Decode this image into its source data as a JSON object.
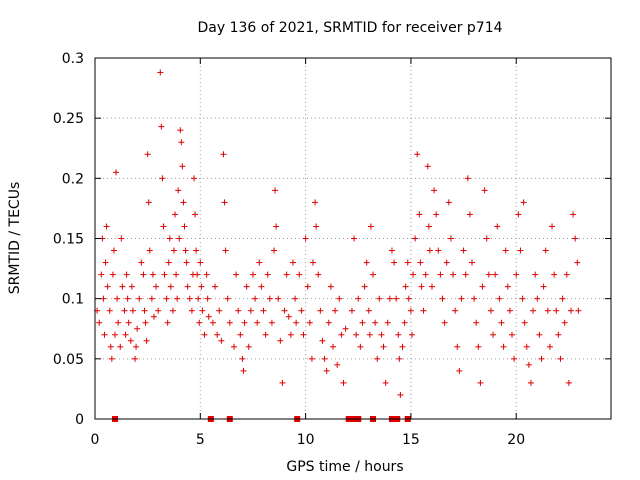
{
  "chart_data": {
    "type": "scatter",
    "title": "Day 136 of 2021, SRMTID for receiver p714",
    "xlabel": "GPS time / hours",
    "ylabel": "SRMTID / TECUs",
    "xlim": [
      0,
      24.5
    ],
    "ylim": [
      0,
      0.3
    ],
    "xticks": [
      0,
      5,
      10,
      15,
      20
    ],
    "xtick_labels": [
      "0",
      "5",
      "10",
      "15",
      "20"
    ],
    "yticks": [
      0,
      0.05,
      0.1,
      0.15,
      0.2,
      0.25,
      0.3
    ],
    "ytick_labels": [
      "0",
      "0.05",
      "0.1",
      "0.15",
      "0.2",
      "0.25",
      "0.3"
    ],
    "grid": true,
    "marker": "+",
    "series_color": "#e00000",
    "data_gap_hours": [
      0.95,
      5.5,
      6.4,
      9.6,
      12.05,
      12.3,
      12.5,
      13.2,
      14.1,
      14.35,
      14.85
    ],
    "series": [
      {
        "name": "SRMTID",
        "points": [
          [
            0.1,
            0.09
          ],
          [
            0.2,
            0.08
          ],
          [
            0.3,
            0.12
          ],
          [
            0.35,
            0.15
          ],
          [
            0.4,
            0.1
          ],
          [
            0.45,
            0.07
          ],
          [
            0.5,
            0.13
          ],
          [
            0.55,
            0.16
          ],
          [
            0.6,
            0.11
          ],
          [
            0.7,
            0.09
          ],
          [
            0.75,
            0.06
          ],
          [
            0.8,
            0.05
          ],
          [
            0.85,
            0.12
          ],
          [
            0.9,
            0.14
          ],
          [
            0.95,
            0.07
          ],
          [
            1.0,
            0.205
          ],
          [
            1.05,
            0.1
          ],
          [
            1.1,
            0.08
          ],
          [
            1.2,
            0.06
          ],
          [
            1.25,
            0.15
          ],
          [
            1.3,
            0.11
          ],
          [
            1.4,
            0.09
          ],
          [
            1.45,
            0.07
          ],
          [
            1.5,
            0.12
          ],
          [
            1.55,
            0.1
          ],
          [
            1.6,
            0.08
          ],
          [
            1.7,
            0.065
          ],
          [
            1.75,
            0.11
          ],
          [
            1.8,
            0.09
          ],
          [
            1.9,
            0.05
          ],
          [
            1.95,
            0.06
          ],
          [
            2.0,
            0.075
          ],
          [
            2.1,
            0.1
          ],
          [
            2.2,
            0.13
          ],
          [
            2.3,
            0.12
          ],
          [
            2.35,
            0.09
          ],
          [
            2.4,
            0.08
          ],
          [
            2.45,
            0.065
          ],
          [
            2.5,
            0.22
          ],
          [
            2.55,
            0.18
          ],
          [
            2.6,
            0.14
          ],
          [
            2.7,
            0.1
          ],
          [
            2.75,
            0.12
          ],
          [
            2.8,
            0.085
          ],
          [
            2.9,
            0.11
          ],
          [
            3.0,
            0.09
          ],
          [
            3.1,
            0.288
          ],
          [
            3.15,
            0.243
          ],
          [
            3.2,
            0.2
          ],
          [
            3.25,
            0.16
          ],
          [
            3.3,
            0.12
          ],
          [
            3.4,
            0.1
          ],
          [
            3.45,
            0.08
          ],
          [
            3.5,
            0.13
          ],
          [
            3.55,
            0.15
          ],
          [
            3.6,
            0.11
          ],
          [
            3.7,
            0.09
          ],
          [
            3.75,
            0.14
          ],
          [
            3.8,
            0.17
          ],
          [
            3.85,
            0.12
          ],
          [
            3.9,
            0.1
          ],
          [
            3.95,
            0.19
          ],
          [
            4.0,
            0.15
          ],
          [
            4.05,
            0.24
          ],
          [
            4.1,
            0.23
          ],
          [
            4.15,
            0.21
          ],
          [
            4.2,
            0.18
          ],
          [
            4.25,
            0.16
          ],
          [
            4.3,
            0.14
          ],
          [
            4.35,
            0.13
          ],
          [
            4.4,
            0.11
          ],
          [
            4.5,
            0.1
          ],
          [
            4.6,
            0.09
          ],
          [
            4.65,
            0.12
          ],
          [
            4.7,
            0.2
          ],
          [
            4.75,
            0.17
          ],
          [
            4.8,
            0.14
          ],
          [
            4.85,
            0.12
          ],
          [
            4.9,
            0.1
          ],
          [
            4.95,
            0.08
          ],
          [
            5.0,
            0.13
          ],
          [
            5.05,
            0.11
          ],
          [
            5.1,
            0.09
          ],
          [
            5.2,
            0.07
          ],
          [
            5.3,
            0.12
          ],
          [
            5.35,
            0.1
          ],
          [
            5.4,
            0.085
          ],
          [
            5.6,
            0.08
          ],
          [
            5.7,
            0.11
          ],
          [
            5.8,
            0.07
          ],
          [
            5.9,
            0.09
          ],
          [
            6.0,
            0.065
          ],
          [
            6.1,
            0.22
          ],
          [
            6.15,
            0.18
          ],
          [
            6.2,
            0.14
          ],
          [
            6.3,
            0.1
          ],
          [
            6.4,
            0.08
          ],
          [
            6.6,
            0.06
          ],
          [
            6.7,
            0.12
          ],
          [
            6.8,
            0.09
          ],
          [
            6.9,
            0.07
          ],
          [
            7.0,
            0.05
          ],
          [
            7.05,
            0.04
          ],
          [
            7.1,
            0.08
          ],
          [
            7.2,
            0.11
          ],
          [
            7.3,
            0.06
          ],
          [
            7.4,
            0.09
          ],
          [
            7.5,
            0.12
          ],
          [
            7.6,
            0.1
          ],
          [
            7.7,
            0.08
          ],
          [
            7.8,
            0.13
          ],
          [
            7.9,
            0.11
          ],
          [
            8.0,
            0.09
          ],
          [
            8.1,
            0.07
          ],
          [
            8.2,
            0.12
          ],
          [
            8.3,
            0.1
          ],
          [
            8.4,
            0.08
          ],
          [
            8.5,
            0.14
          ],
          [
            8.55,
            0.19
          ],
          [
            8.6,
            0.16
          ],
          [
            8.7,
            0.1
          ],
          [
            8.8,
            0.065
          ],
          [
            8.9,
            0.03
          ],
          [
            9.0,
            0.09
          ],
          [
            9.1,
            0.12
          ],
          [
            9.2,
            0.085
          ],
          [
            9.3,
            0.07
          ],
          [
            9.4,
            0.13
          ],
          [
            9.5,
            0.1
          ],
          [
            9.55,
            0.08
          ],
          [
            9.7,
            0.12
          ],
          [
            9.8,
            0.09
          ],
          [
            9.9,
            0.07
          ],
          [
            10.0,
            0.15
          ],
          [
            10.1,
            0.11
          ],
          [
            10.2,
            0.08
          ],
          [
            10.3,
            0.05
          ],
          [
            10.35,
            0.13
          ],
          [
            10.45,
            0.18
          ],
          [
            10.5,
            0.16
          ],
          [
            10.6,
            0.12
          ],
          [
            10.7,
            0.09
          ],
          [
            10.8,
            0.065
          ],
          [
            10.9,
            0.05
          ],
          [
            11.0,
            0.04
          ],
          [
            11.1,
            0.08
          ],
          [
            11.2,
            0.11
          ],
          [
            11.3,
            0.06
          ],
          [
            11.4,
            0.09
          ],
          [
            11.5,
            0.045
          ],
          [
            11.6,
            0.1
          ],
          [
            11.7,
            0.07
          ],
          [
            11.8,
            0.03
          ],
          [
            11.9,
            0.075
          ],
          [
            12.2,
            0.09
          ],
          [
            12.3,
            0.15
          ],
          [
            12.4,
            0.07
          ],
          [
            12.5,
            0.1
          ],
          [
            12.6,
            0.06
          ],
          [
            12.7,
            0.08
          ],
          [
            12.8,
            0.11
          ],
          [
            12.9,
            0.13
          ],
          [
            13.0,
            0.09
          ],
          [
            13.05,
            0.07
          ],
          [
            13.1,
            0.16
          ],
          [
            13.2,
            0.12
          ],
          [
            13.3,
            0.08
          ],
          [
            13.4,
            0.05
          ],
          [
            13.5,
            0.1
          ],
          [
            13.6,
            0.07
          ],
          [
            13.7,
            0.06
          ],
          [
            13.8,
            0.03
          ],
          [
            13.9,
            0.08
          ],
          [
            14.0,
            0.1
          ],
          [
            14.1,
            0.14
          ],
          [
            14.2,
            0.13
          ],
          [
            14.3,
            0.1
          ],
          [
            14.4,
            0.07
          ],
          [
            14.45,
            0.05
          ],
          [
            14.5,
            0.02
          ],
          [
            14.6,
            0.06
          ],
          [
            14.7,
            0.08
          ],
          [
            14.75,
            0.11
          ],
          [
            14.85,
            0.13
          ],
          [
            14.9,
            0.1
          ],
          [
            15.0,
            0.09
          ],
          [
            15.05,
            0.07
          ],
          [
            15.1,
            0.12
          ],
          [
            15.2,
            0.15
          ],
          [
            15.3,
            0.22
          ],
          [
            15.4,
            0.17
          ],
          [
            15.45,
            0.13
          ],
          [
            15.5,
            0.11
          ],
          [
            15.6,
            0.09
          ],
          [
            15.7,
            0.12
          ],
          [
            15.8,
            0.21
          ],
          [
            15.85,
            0.16
          ],
          [
            15.9,
            0.14
          ],
          [
            16.0,
            0.11
          ],
          [
            16.1,
            0.19
          ],
          [
            16.2,
            0.17
          ],
          [
            16.3,
            0.14
          ],
          [
            16.4,
            0.12
          ],
          [
            16.5,
            0.1
          ],
          [
            16.6,
            0.08
          ],
          [
            16.7,
            0.13
          ],
          [
            16.8,
            0.18
          ],
          [
            16.9,
            0.15
          ],
          [
            17.0,
            0.12
          ],
          [
            17.1,
            0.09
          ],
          [
            17.2,
            0.06
          ],
          [
            17.3,
            0.04
          ],
          [
            17.4,
            0.1
          ],
          [
            17.5,
            0.14
          ],
          [
            17.6,
            0.12
          ],
          [
            17.7,
            0.2
          ],
          [
            17.8,
            0.17
          ],
          [
            17.9,
            0.13
          ],
          [
            18.0,
            0.1
          ],
          [
            18.1,
            0.08
          ],
          [
            18.2,
            0.06
          ],
          [
            18.3,
            0.03
          ],
          [
            18.4,
            0.11
          ],
          [
            18.5,
            0.19
          ],
          [
            18.6,
            0.15
          ],
          [
            18.7,
            0.12
          ],
          [
            18.8,
            0.09
          ],
          [
            18.9,
            0.07
          ],
          [
            19.0,
            0.12
          ],
          [
            19.1,
            0.16
          ],
          [
            19.2,
            0.1
          ],
          [
            19.3,
            0.08
          ],
          [
            19.4,
            0.06
          ],
          [
            19.5,
            0.14
          ],
          [
            19.6,
            0.11
          ],
          [
            19.7,
            0.09
          ],
          [
            19.8,
            0.07
          ],
          [
            19.9,
            0.05
          ],
          [
            20.0,
            0.12
          ],
          [
            20.1,
            0.17
          ],
          [
            20.2,
            0.14
          ],
          [
            20.3,
            0.1
          ],
          [
            20.35,
            0.18
          ],
          [
            20.4,
            0.08
          ],
          [
            20.5,
            0.06
          ],
          [
            20.6,
            0.045
          ],
          [
            20.7,
            0.03
          ],
          [
            20.8,
            0.09
          ],
          [
            20.9,
            0.12
          ],
          [
            21.0,
            0.1
          ],
          [
            21.1,
            0.07
          ],
          [
            21.2,
            0.05
          ],
          [
            21.3,
            0.11
          ],
          [
            21.4,
            0.14
          ],
          [
            21.5,
            0.09
          ],
          [
            21.6,
            0.06
          ],
          [
            21.7,
            0.16
          ],
          [
            21.8,
            0.12
          ],
          [
            21.9,
            0.09
          ],
          [
            22.0,
            0.07
          ],
          [
            22.1,
            0.05
          ],
          [
            22.2,
            0.1
          ],
          [
            22.3,
            0.08
          ],
          [
            22.4,
            0.12
          ],
          [
            22.5,
            0.03
          ],
          [
            22.6,
            0.09
          ],
          [
            22.7,
            0.17
          ],
          [
            22.8,
            0.15
          ],
          [
            22.9,
            0.13
          ],
          [
            22.95,
            0.09
          ]
        ]
      }
    ]
  }
}
